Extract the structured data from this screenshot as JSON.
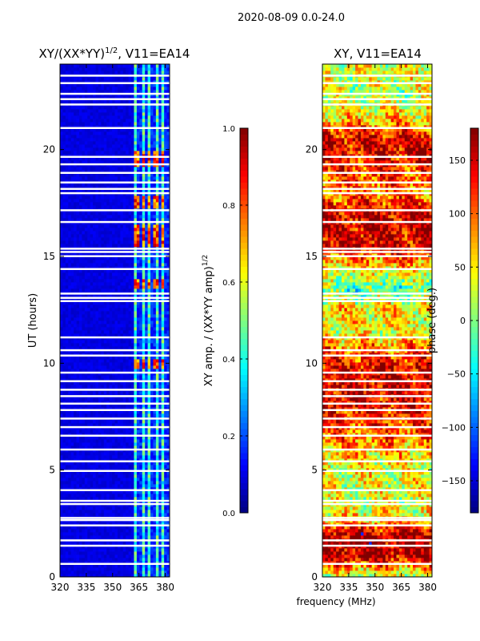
{
  "suptitle": "2020-08-09 0.0-24.0",
  "shared_xlabel": "frequency (MHz)",
  "colors": {
    "background": "#ffffff",
    "gap_rows": "#ffffff",
    "axis": "#000000"
  },
  "chart_data": [
    {
      "type": "heatmap",
      "title_main": "XY/(XX*YY)",
      "title_sup": "1/2",
      "title_tail": ", V11=EA14",
      "xlabel": "",
      "ylabel": "UT (hours)",
      "xlim": [
        320,
        382.5
      ],
      "ylim": [
        0,
        24
      ],
      "xticks": [
        320,
        335,
        350,
        365,
        380
      ],
      "yticks": [
        0,
        5,
        10,
        15,
        20
      ],
      "colormap": "jet",
      "colorbar": {
        "label_main": "XY amp. / (XX*YY amp)",
        "label_sup": "1/2",
        "range": [
          0.0,
          1.0
        ],
        "ticks": [
          0.0,
          0.2,
          0.4,
          0.6,
          0.8,
          1.0
        ],
        "tick_labels": [
          "0.0",
          "0.2",
          "0.4",
          "0.6",
          "0.8",
          "1.0"
        ]
      },
      "pattern": {
        "low_band_level": 0.07,
        "active_band_mhz": [
          362,
          382.5
        ],
        "strong_hours": [
          [
            15.5,
            16.5
          ],
          [
            17.2,
            17.8
          ],
          [
            19.2,
            19.9
          ],
          [
            13.5,
            14.0
          ],
          [
            9.8,
            10.2
          ]
        ],
        "stripe_channels_mhz": [
          363.5,
          367.5,
          371.0,
          375.0,
          378.5
        ]
      }
    },
    {
      "type": "heatmap",
      "title_main": "XY, V11=EA14",
      "title_sup": "",
      "title_tail": "",
      "xlabel": "",
      "ylabel": "",
      "xlim": [
        320,
        382.5
      ],
      "ylim": [
        0,
        24
      ],
      "xticks": [
        320,
        335,
        350,
        365,
        380
      ],
      "yticks": [
        0,
        5,
        10,
        15,
        20
      ],
      "colormap": "jet",
      "colorbar": {
        "label_main": "phase (deg.)",
        "label_sup": "",
        "range": [
          -180,
          180
        ],
        "ticks": [
          -150,
          -100,
          -50,
          0,
          50,
          100,
          150
        ],
        "tick_labels": [
          "−150",
          "−100",
          "−50",
          "0",
          "50",
          "100",
          "150"
        ]
      },
      "pattern": {
        "hour_phase_deg": [
          [
            0,
            20
          ],
          [
            1,
            160
          ],
          [
            2,
            170
          ],
          [
            2.7,
            60
          ],
          [
            3.5,
            30
          ],
          [
            5,
            40
          ],
          [
            6.5,
            90
          ],
          [
            8,
            140
          ],
          [
            9.5,
            150
          ],
          [
            10.5,
            110
          ],
          [
            11.5,
            40
          ],
          [
            12.5,
            60
          ],
          [
            13.5,
            -20
          ],
          [
            14.5,
            60
          ],
          [
            15.5,
            150
          ],
          [
            17,
            150
          ],
          [
            18,
            90
          ],
          [
            19,
            120
          ],
          [
            20.5,
            150
          ],
          [
            21.5,
            60
          ],
          [
            22.5,
            20
          ],
          [
            24,
            40
          ]
        ]
      }
    }
  ],
  "gap_hours": [
    0.6,
    1.45,
    1.7,
    2.4,
    2.65,
    2.75,
    3.4,
    3.55,
    4.05,
    4.95,
    5.4,
    5.95,
    6.6,
    7.0,
    7.4,
    7.8,
    8.1,
    8.45,
    8.75,
    9.15,
    9.55,
    10.35,
    10.6,
    11.2,
    12.9,
    13.05,
    13.25,
    14.4,
    15.0,
    15.2,
    15.35,
    16.6,
    17.15,
    17.95,
    18.15,
    18.45,
    18.9,
    19.3,
    19.65,
    21.0,
    22.1,
    22.35,
    22.6,
    23.1,
    23.45
  ]
}
